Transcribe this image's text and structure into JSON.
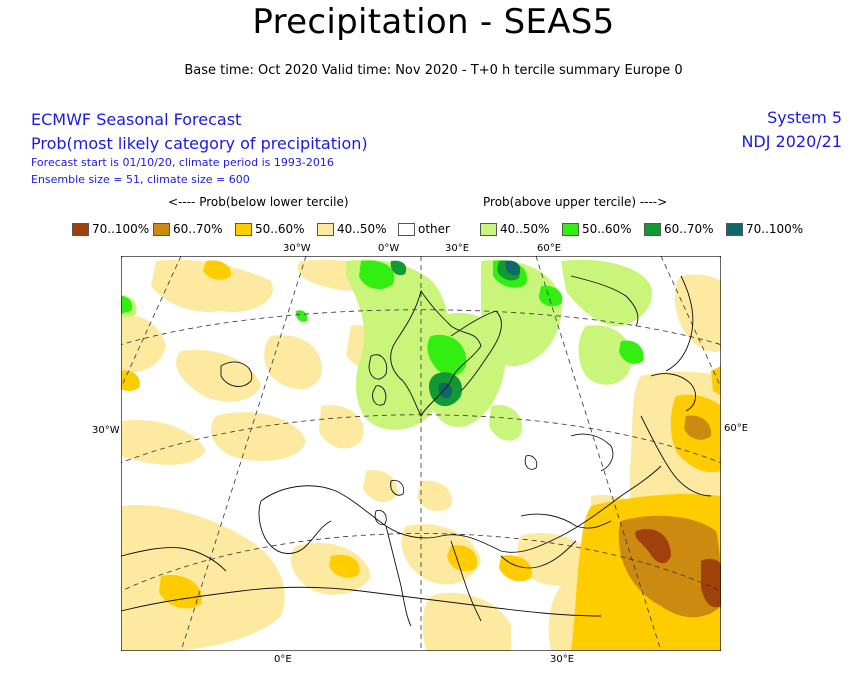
{
  "title": "Precipitation - SEAS5",
  "subtitle": "Base time: Oct 2020 Valid time: Nov 2020 - T+0 h tercile summary Europe 0",
  "info": {
    "line1": "ECMWF Seasonal Forecast",
    "line2": "Prob(most likely category of precipitation)",
    "line3": "Forecast start is 01/10/20, climate period is 1993-2016",
    "line4": "Ensemble size = 51, climate size = 600",
    "system": "System 5",
    "period": "NDJ 2020/21",
    "text_color": "#1a1ae6"
  },
  "legend": {
    "below_header": "<---- Prob(below lower tercile)",
    "above_header": "Prob(above upper tercile) ---->",
    "items": [
      {
        "label": "70..100%",
        "color": "#a0400a"
      },
      {
        "label": "60..70%",
        "color": "#cc8a10"
      },
      {
        "label": "50..60%",
        "color": "#ffcc00"
      },
      {
        "label": "40..50%",
        "color": "#fde9a0"
      },
      {
        "label": "other",
        "color": "#ffffff"
      },
      {
        "label": "40..50%",
        "color": "#c8f57a"
      },
      {
        "label": "50..60%",
        "color": "#33ee11"
      },
      {
        "label": "60..70%",
        "color": "#119933"
      },
      {
        "label": "70..100%",
        "color": "#116666"
      }
    ]
  },
  "axes": {
    "top_ticks": [
      "30°W",
      "0°W",
      "30°E",
      "60°E"
    ],
    "left_tick": "30°W",
    "right_tick": "60°E",
    "bottom_ticks": [
      "0°E",
      "30°E"
    ]
  }
}
